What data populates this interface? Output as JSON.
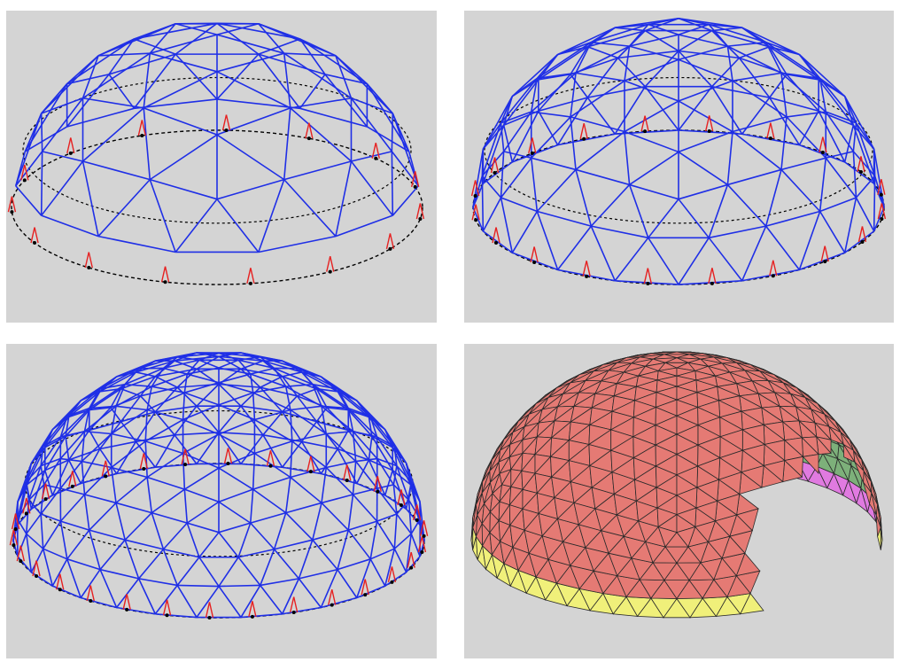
{
  "colors": {
    "background": "#d4d4d4",
    "frame": "#1f2fe6",
    "support": "#e62020",
    "base_circle": "#000000",
    "panel_red": "#e57a74",
    "panel_green": "#7db07a",
    "panel_yellow": "#f0f07a",
    "panel_magenta": "#e07ae0",
    "panel_edge": "#2a2a2a"
  },
  "panels": [
    {
      "id": "frequency-low",
      "style": "wireframe",
      "frequency": 3
    },
    {
      "id": "frequency-medium",
      "style": "wireframe",
      "frequency": 4
    },
    {
      "id": "frequency-high",
      "style": "wireframe",
      "frequency": 6
    },
    {
      "id": "clad-dome",
      "style": "shaded",
      "frequency": 10
    }
  ],
  "icons": [
    "geodesic-dome-wireframe",
    "support-leg",
    "dashed-base-circle",
    "geodesic-dome-clad"
  ]
}
